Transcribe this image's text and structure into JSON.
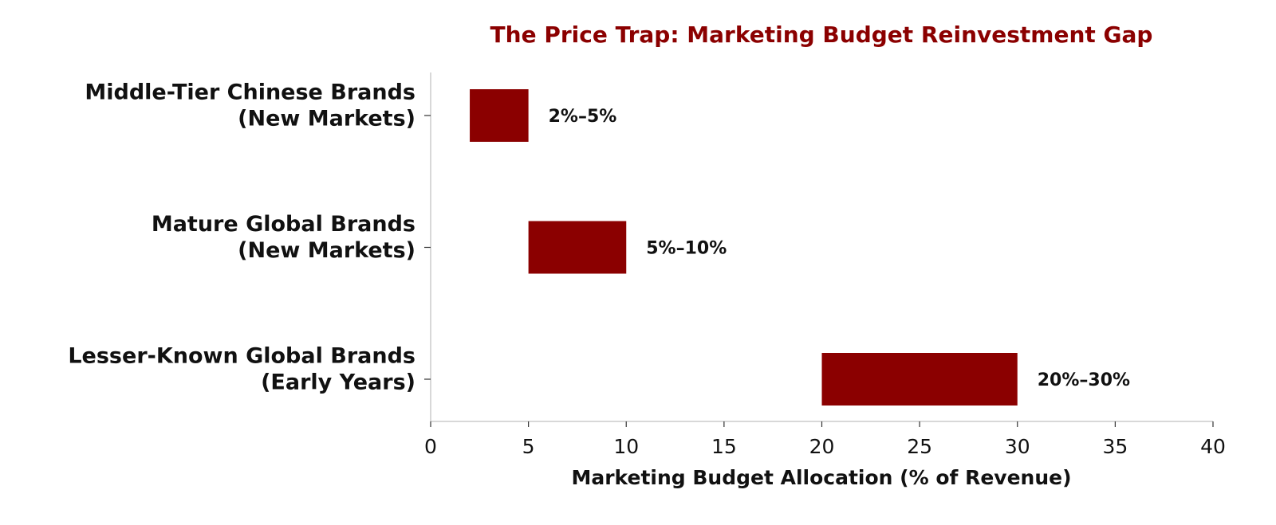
{
  "chart_data": {
    "type": "bar",
    "orientation": "horizontal",
    "title": "The Price Trap: Marketing Budget Reinvestment Gap",
    "xlabel": "Marketing Budget Allocation (% of Revenue)",
    "ylabel": "",
    "xlim": [
      0,
      40
    ],
    "x_ticks": [
      0,
      5,
      10,
      15,
      20,
      25,
      30,
      35,
      40
    ],
    "grid": false,
    "bar_color": "#8b0000",
    "title_color": "#8b0000",
    "categories": [
      {
        "lines": [
          "Middle-Tier Chinese Brands",
          "(New Markets)"
        ],
        "start": 2,
        "end": 5,
        "label": "2%–5%"
      },
      {
        "lines": [
          "Mature Global Brands",
          "(New Markets)"
        ],
        "start": 5,
        "end": 10,
        "label": "5%–10%"
      },
      {
        "lines": [
          "Lesser-Known Global Brands",
          "(Early Years)"
        ],
        "start": 20,
        "end": 30,
        "label": "20%–30%"
      }
    ]
  }
}
